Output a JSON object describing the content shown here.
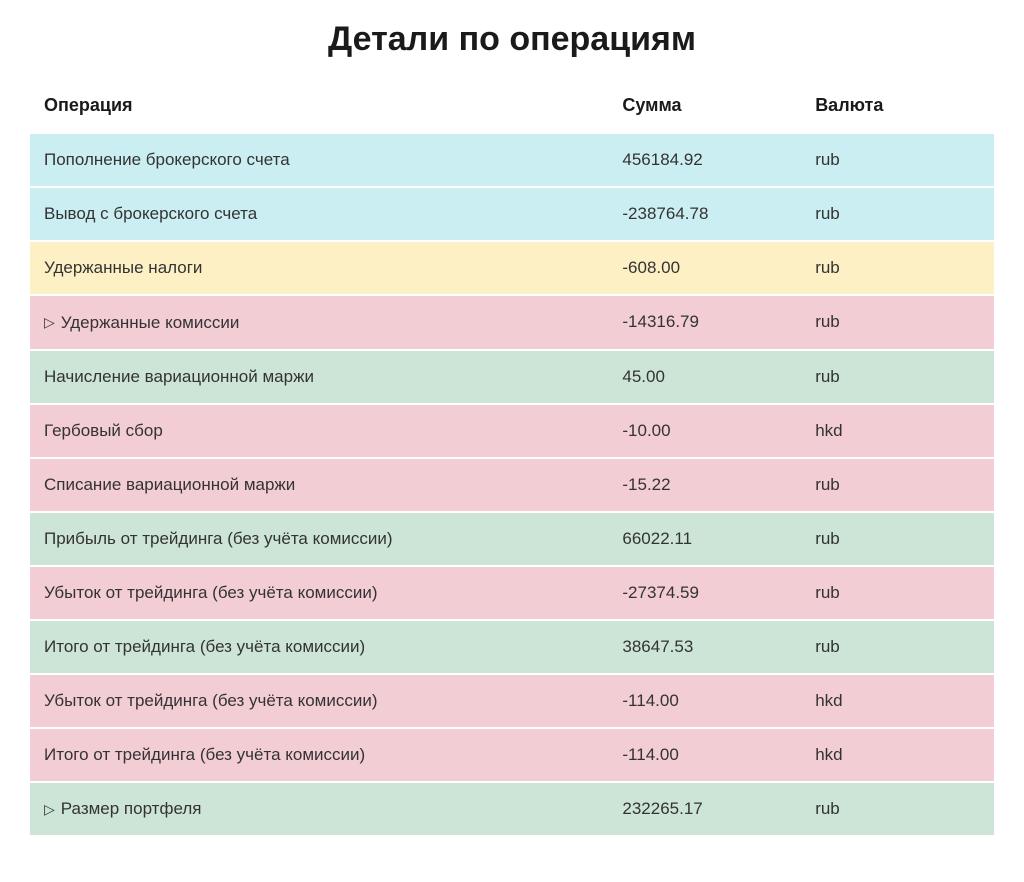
{
  "title": "Детали по операциям",
  "table": {
    "columns": [
      "Операция",
      "Сумма",
      "Валюта"
    ],
    "rows": [
      {
        "operation": "Пополнение брокерского счета",
        "sum": "456184.92",
        "currency": "rub",
        "color": "blue",
        "expandable": false
      },
      {
        "operation": "Вывод с брокерского счета",
        "sum": "-238764.78",
        "currency": "rub",
        "color": "blue",
        "expandable": false
      },
      {
        "operation": "Удержанные налоги",
        "sum": "-608.00",
        "currency": "rub",
        "color": "yellow",
        "expandable": false
      },
      {
        "operation": "Удержанные комиссии",
        "sum": "-14316.79",
        "currency": "rub",
        "color": "pink",
        "expandable": true
      },
      {
        "operation": "Начисление вариационной маржи",
        "sum": "45.00",
        "currency": "rub",
        "color": "green",
        "expandable": false
      },
      {
        "operation": "Гербовый сбор",
        "sum": "-10.00",
        "currency": "hkd",
        "color": "pink",
        "expandable": false
      },
      {
        "operation": "Списание вариационной маржи",
        "sum": "-15.22",
        "currency": "rub",
        "color": "pink",
        "expandable": false
      },
      {
        "operation": "Прибыль от трейдинга (без учёта комиссии)",
        "sum": "66022.11",
        "currency": "rub",
        "color": "green",
        "expandable": false
      },
      {
        "operation": "Убыток от трейдинга (без учёта комиссии)",
        "sum": "-27374.59",
        "currency": "rub",
        "color": "pink",
        "expandable": false
      },
      {
        "operation": "Итого от трейдинга (без учёта комиссии)",
        "sum": "38647.53",
        "currency": "rub",
        "color": "green",
        "expandable": false
      },
      {
        "operation": "Убыток от трейдинга (без учёта комиссии)",
        "sum": "-114.00",
        "currency": "hkd",
        "color": "pink",
        "expandable": false
      },
      {
        "operation": "Итого от трейдинга (без учёта комиссии)",
        "sum": "-114.00",
        "currency": "hkd",
        "color": "pink",
        "expandable": false
      },
      {
        "operation": "Размер портфеля",
        "sum": "232265.17",
        "currency": "rub",
        "color": "green",
        "expandable": true
      }
    ]
  },
  "colors": {
    "blue": "#cbeef2",
    "yellow": "#fdf0c4",
    "pink": "#f3cdd4",
    "green": "#cde5d6",
    "background": "#ffffff",
    "text": "#333333",
    "heading": "#1a1a1a"
  },
  "typography": {
    "title_fontsize": 34,
    "header_fontsize": 18,
    "cell_fontsize": 17,
    "font_family": "Segoe UI"
  }
}
